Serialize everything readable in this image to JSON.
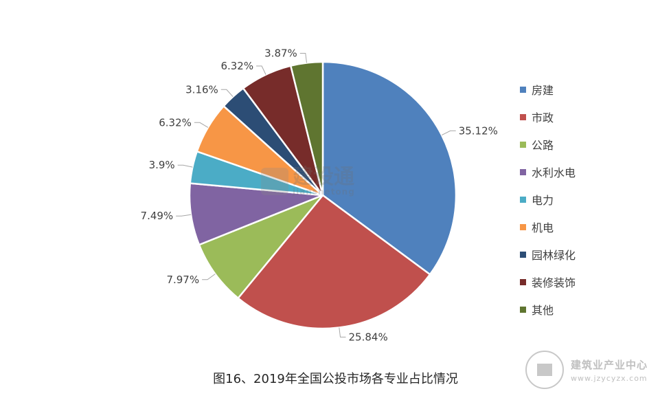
{
  "chart_data": {
    "type": "pie",
    "title": "图16、2019年全国公投市场各专业占比情况",
    "legend_position": "right",
    "labels": [
      "房建",
      "市政",
      "公路",
      "水利水电",
      "电力",
      "机电",
      "园林绿化",
      "装修装饰",
      "其他"
    ],
    "values": [
      35.12,
      25.84,
      7.97,
      7.49,
      3.9,
      6.32,
      3.16,
      6.32,
      3.87
    ],
    "value_labels": [
      "35.12%",
      "25.84%",
      "7.97%",
      "7.49%",
      "3.9%",
      "6.32%",
      "3.16%",
      "6.32%",
      "3.87%"
    ],
    "colors": [
      "#4f81bd",
      "#c0504d",
      "#9bbb59",
      "#8064a2",
      "#4bacc6",
      "#f79646",
      "#2c4d75",
      "#772c2a",
      "#5f7530"
    ]
  },
  "watermark": {
    "name": "建设通",
    "sub": "jianshetong"
  },
  "corner_logo": {
    "name": "建筑业产业中心",
    "url": "www.jzycyzx.com"
  }
}
